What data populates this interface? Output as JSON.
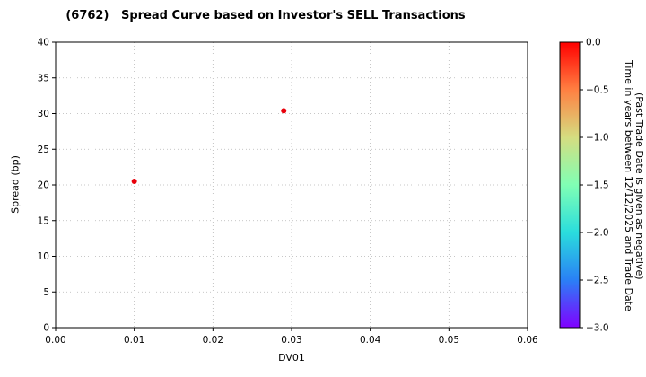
{
  "chart_data": {
    "type": "scatter",
    "title": "(6762)   Spread Curve based on Investor's SELL Transactions",
    "xlabel": "DV01",
    "ylabel": "Spread (bp)",
    "xlim": [
      0.0,
      0.06
    ],
    "ylim": [
      0,
      40
    ],
    "grid": "dotted",
    "legend": "none",
    "xticks": [
      0.0,
      0.01,
      0.02,
      0.03,
      0.04,
      0.05,
      0.06
    ],
    "xtick_labels": [
      "0.00",
      "0.01",
      "0.02",
      "0.03",
      "0.04",
      "0.05",
      "0.06"
    ],
    "yticks": [
      0,
      5,
      10,
      15,
      20,
      25,
      30,
      35,
      40
    ],
    "ytick_labels": [
      "0",
      "5",
      "10",
      "15",
      "20",
      "25",
      "30",
      "35",
      "40"
    ],
    "points": [
      {
        "x": 0.01,
        "y": 20.5,
        "color_value": 0.0,
        "color": "#e8000b"
      },
      {
        "x": 0.029,
        "y": 30.4,
        "color_value": 0.0,
        "color": "#e8000b"
      }
    ],
    "colorbar": {
      "label_line1": "Time in years between 12/12/2025 and Trade Date",
      "label_line2": "(Past Trade Date is given as negative)",
      "min": -3.0,
      "max": 0.0,
      "ticks": [
        0.0,
        -0.5,
        -1.0,
        -1.5,
        -2.0,
        -2.5,
        -3.0
      ],
      "tick_labels": [
        "0.0",
        "−0.5",
        "−1.0",
        "−1.5",
        "−2.0",
        "−2.5",
        "−3.0"
      ],
      "colormap": "rainbow",
      "gradient_stops": [
        {
          "offset": 0.0,
          "color": "#ff0000"
        },
        {
          "offset": 0.167,
          "color": "#ff8042"
        },
        {
          "offset": 0.333,
          "color": "#d5dd80"
        },
        {
          "offset": 0.5,
          "color": "#80ffb4"
        },
        {
          "offset": 0.667,
          "color": "#2adddd"
        },
        {
          "offset": 0.833,
          "color": "#2a80f6"
        },
        {
          "offset": 1.0,
          "color": "#8000ff"
        }
      ]
    }
  }
}
